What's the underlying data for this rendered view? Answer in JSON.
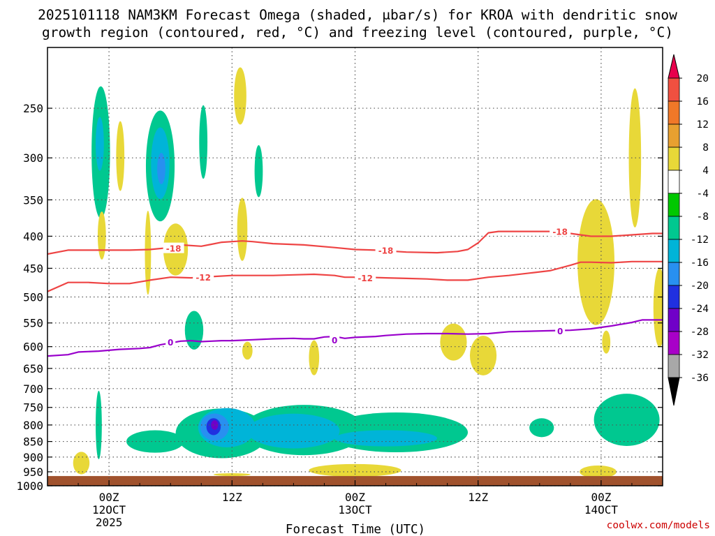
{
  "chart_data": {
    "type": "heatmap",
    "title_line1": "2025101118 NAM3KM Forecast Omega (shaded, μbar/s) for KROA with dendritic snow",
    "title_line2": "growth region (contoured, red, °C) and freezing level (contoured, purple, °C)",
    "xlabel": "Forecast Time (UTC)",
    "ylabel": "",
    "credit": "coolwx.com/models",
    "x_ticks": [
      {
        "hour": 6,
        "label": "00Z",
        "label2": "12OCT",
        "label3": "2025"
      },
      {
        "hour": 18,
        "label": "12Z",
        "label2": "",
        "label3": ""
      },
      {
        "hour": 30,
        "label": "00Z",
        "label2": "13OCT",
        "label3": ""
      },
      {
        "hour": 42,
        "label": "12Z",
        "label2": "",
        "label3": ""
      },
      {
        "hour": 54,
        "label": "00Z",
        "label2": "14OCT",
        "label3": ""
      }
    ],
    "xlim_hours": [
      0,
      60
    ],
    "y_ticks": [
      250,
      300,
      350,
      400,
      450,
      500,
      550,
      600,
      650,
      700,
      750,
      800,
      850,
      900,
      950,
      1000
    ],
    "ylim_hPa": [
      200,
      1000
    ],
    "surface_pressure_hPa": 965,
    "colorbar": {
      "labels": [
        "20",
        "16",
        "12",
        "8",
        "4",
        "-4",
        "-8",
        "-12",
        "-16",
        "-20",
        "-24",
        "-28",
        "-32",
        "-36"
      ],
      "colors": [
        "#e8004c",
        "#f05040",
        "#f07828",
        "#e8a030",
        "#e8d838",
        "#ffffff",
        "#00c800",
        "#00c890",
        "#00b4d8",
        "#2890f0",
        "#2030e0",
        "#7000c8",
        "#a800c8",
        "#a8a8a8",
        "#000000"
      ]
    },
    "contours": [
      {
        "name": "-18",
        "color": "#ee4444",
        "points": [
          [
            0,
            427
          ],
          [
            2,
            421
          ],
          [
            5,
            421
          ],
          [
            8,
            421
          ],
          [
            10,
            420
          ],
          [
            12,
            417
          ],
          [
            13,
            413
          ],
          [
            15,
            415
          ],
          [
            16,
            412
          ],
          [
            17,
            409
          ],
          [
            18,
            408
          ],
          [
            19,
            407
          ],
          [
            20,
            408
          ],
          [
            22,
            411
          ],
          [
            25,
            413
          ],
          [
            28,
            417
          ],
          [
            30,
            420
          ],
          [
            32,
            421
          ],
          [
            35,
            424
          ],
          [
            38,
            425
          ],
          [
            40,
            423
          ],
          [
            41,
            420
          ],
          [
            42,
            410
          ],
          [
            43,
            395
          ],
          [
            44,
            393
          ],
          [
            46,
            393
          ],
          [
            49,
            393
          ],
          [
            51,
            396
          ],
          [
            53,
            400
          ],
          [
            55,
            400
          ],
          [
            57,
            398
          ],
          [
            59,
            396
          ],
          [
            60,
            396
          ]
        ],
        "labels": [
          [
            12.3,
            418
          ],
          [
            33,
            421
          ],
          [
            50,
            393
          ]
        ]
      },
      {
        "name": "-12",
        "color": "#ee4444",
        "points": [
          [
            0,
            490
          ],
          [
            2,
            474
          ],
          [
            4,
            474
          ],
          [
            6,
            476
          ],
          [
            8,
            476
          ],
          [
            10,
            470
          ],
          [
            12,
            465
          ],
          [
            14,
            466
          ],
          [
            16,
            464
          ],
          [
            18,
            462
          ],
          [
            20,
            462
          ],
          [
            22,
            462
          ],
          [
            24,
            461
          ],
          [
            26,
            460
          ],
          [
            28,
            462
          ],
          [
            29,
            465
          ],
          [
            31,
            465
          ],
          [
            33,
            466
          ],
          [
            35,
            467
          ],
          [
            37,
            468
          ],
          [
            39,
            470
          ],
          [
            41,
            470
          ],
          [
            43,
            465
          ],
          [
            45,
            462
          ],
          [
            47,
            458
          ],
          [
            49,
            454
          ],
          [
            51,
            445
          ],
          [
            52,
            440
          ],
          [
            53,
            440
          ],
          [
            55,
            441
          ],
          [
            57,
            439
          ],
          [
            59,
            439
          ],
          [
            60,
            439
          ]
        ],
        "labels": [
          [
            15.2,
            465
          ],
          [
            31,
            466
          ]
        ]
      },
      {
        "name": "0",
        "color": "#9900cc",
        "points": [
          [
            0,
            621
          ],
          [
            2,
            618
          ],
          [
            3,
            612
          ],
          [
            5,
            610
          ],
          [
            7,
            606
          ],
          [
            9,
            604
          ],
          [
            10,
            602
          ],
          [
            11,
            596
          ],
          [
            12,
            592
          ],
          [
            13,
            588
          ],
          [
            14,
            587
          ],
          [
            15,
            589
          ],
          [
            16,
            588
          ],
          [
            17,
            587
          ],
          [
            18,
            587
          ],
          [
            20,
            585
          ],
          [
            22,
            583
          ],
          [
            24,
            582
          ],
          [
            25,
            583
          ],
          [
            26,
            583
          ],
          [
            27,
            579
          ],
          [
            28,
            578
          ],
          [
            29,
            582
          ],
          [
            30,
            580
          ],
          [
            32,
            578
          ],
          [
            33,
            576
          ],
          [
            35,
            573
          ],
          [
            37,
            572
          ],
          [
            39,
            572
          ],
          [
            41,
            573
          ],
          [
            43,
            572
          ],
          [
            45,
            568
          ],
          [
            47,
            567
          ],
          [
            49,
            566
          ],
          [
            51,
            565
          ],
          [
            53,
            562
          ],
          [
            55,
            556
          ],
          [
            57,
            549
          ],
          [
            58,
            544
          ],
          [
            59,
            544
          ],
          [
            60,
            544
          ]
        ],
        "labels": [
          [
            12,
            590
          ],
          [
            28,
            585
          ],
          [
            50,
            566
          ]
        ]
      }
    ],
    "omega_regions": [
      {
        "level": "-8",
        "center": [
          5.2,
          294
        ],
        "radius_hours": 0.9,
        "radius_hPa": 70
      },
      {
        "level": "-12",
        "center": [
          5.1,
          285
        ],
        "radius_hours": 0.4,
        "radius_hPa": 28
      },
      {
        "level": "4",
        "center": [
          7.1,
          298
        ],
        "radius_hours": 0.4,
        "radius_hPa": 38
      },
      {
        "level": "4",
        "center": [
          5.3,
          399
        ],
        "radius_hours": 0.4,
        "radius_hPa": 35
      },
      {
        "level": "-8",
        "center": [
          11,
          309
        ],
        "radius_hours": 1.4,
        "radius_hPa": 62
      },
      {
        "level": "-12",
        "center": [
          11,
          306
        ],
        "radius_hours": 0.9,
        "radius_hPa": 40
      },
      {
        "level": "-16",
        "center": [
          11.1,
          312
        ],
        "radius_hours": 0.4,
        "radius_hPa": 18
      },
      {
        "level": "-8",
        "center": [
          15.2,
          283
        ],
        "radius_hours": 0.4,
        "radius_hPa": 38
      },
      {
        "level": "-8",
        "center": [
          20.6,
          315
        ],
        "radius_hours": 0.4,
        "radius_hPa": 30
      },
      {
        "level": "4",
        "center": [
          18.8,
          239
        ],
        "radius_hours": 0.6,
        "radius_hPa": 25
      },
      {
        "level": "4",
        "center": [
          19,
          390
        ],
        "radius_hours": 0.5,
        "radius_hPa": 45
      },
      {
        "level": "4",
        "center": [
          12.5,
          420
        ],
        "radius_hours": 1.2,
        "radius_hPa": 40
      },
      {
        "level": "4",
        "center": [
          9.8,
          425
        ],
        "radius_hours": 0.3,
        "radius_hPa": 65
      },
      {
        "level": "-8",
        "center": [
          14.3,
          565
        ],
        "radius_hours": 0.9,
        "radius_hPa": 40
      },
      {
        "level": "4",
        "center": [
          19.5,
          609
        ],
        "radius_hours": 0.5,
        "radius_hPa": 20
      },
      {
        "level": "4",
        "center": [
          26,
          625
        ],
        "radius_hours": 0.5,
        "radius_hPa": 40
      },
      {
        "level": "4",
        "center": [
          39.6,
          590
        ],
        "radius_hours": 1.3,
        "radius_hPa": 40
      },
      {
        "level": "4",
        "center": [
          42.5,
          620
        ],
        "radius_hours": 1.3,
        "radius_hPa": 45
      },
      {
        "level": "4",
        "center": [
          53.5,
          440
        ],
        "radius_hours": 1.8,
        "radius_hPa": 100
      },
      {
        "level": "4",
        "center": [
          57.3,
          300
        ],
        "radius_hours": 0.6,
        "radius_hPa": 75
      },
      {
        "level": "4",
        "center": [
          59.7,
          520
        ],
        "radius_hours": 0.6,
        "radius_hPa": 75
      },
      {
        "level": "4",
        "center": [
          54.5,
          590
        ],
        "radius_hours": 0.4,
        "radius_hPa": 25
      },
      {
        "level": "-8",
        "center": [
          17,
          825
        ],
        "radius_hours": 4.5,
        "radius_hPa": 75
      },
      {
        "level": "-8",
        "center": [
          25,
          815
        ],
        "radius_hours": 6,
        "radius_hPa": 75
      },
      {
        "level": "-8",
        "center": [
          34,
          822
        ],
        "radius_hours": 7,
        "radius_hPa": 60
      },
      {
        "level": "-8",
        "center": [
          10.5,
          850
        ],
        "radius_hours": 2.8,
        "radius_hPa": 35
      },
      {
        "level": "-8",
        "center": [
          5,
          800
        ],
        "radius_hours": 0.3,
        "radius_hPa": 100
      },
      {
        "level": "-8",
        "center": [
          56.5,
          785
        ],
        "radius_hours": 3.2,
        "radius_hPa": 75
      },
      {
        "level": "-8",
        "center": [
          48.2,
          808
        ],
        "radius_hours": 1.2,
        "radius_hPa": 28
      },
      {
        "level": "-12",
        "center": [
          17.5,
          808
        ],
        "radius_hours": 2.8,
        "radius_hPa": 58
      },
      {
        "level": "-12",
        "center": [
          24,
          818
        ],
        "radius_hours": 4.5,
        "radius_hPa": 52
      },
      {
        "level": "-12",
        "center": [
          33,
          840
        ],
        "radius_hours": 5,
        "radius_hPa": 25
      },
      {
        "level": "-16",
        "center": [
          16.3,
          806
        ],
        "radius_hours": 1.4,
        "radius_hPa": 40
      },
      {
        "level": "-20",
        "center": [
          16.2,
          805
        ],
        "radius_hours": 0.7,
        "radius_hPa": 25
      },
      {
        "level": "-24",
        "center": [
          16.3,
          800
        ],
        "radius_hours": 0.35,
        "radius_hPa": 14
      },
      {
        "level": "4",
        "center": [
          3.3,
          920
        ],
        "radius_hours": 0.8,
        "radius_hPa": 38
      },
      {
        "level": "4",
        "center": [
          30,
          945
        ],
        "radius_hours": 4.5,
        "radius_hPa": 22
      },
      {
        "level": "4",
        "center": [
          53.7,
          950
        ],
        "radius_hours": 1.8,
        "radius_hPa": 22
      },
      {
        "level": "4",
        "center": [
          18,
          960
        ],
        "radius_hours": 1.8,
        "radius_hPa": 5
      }
    ]
  }
}
